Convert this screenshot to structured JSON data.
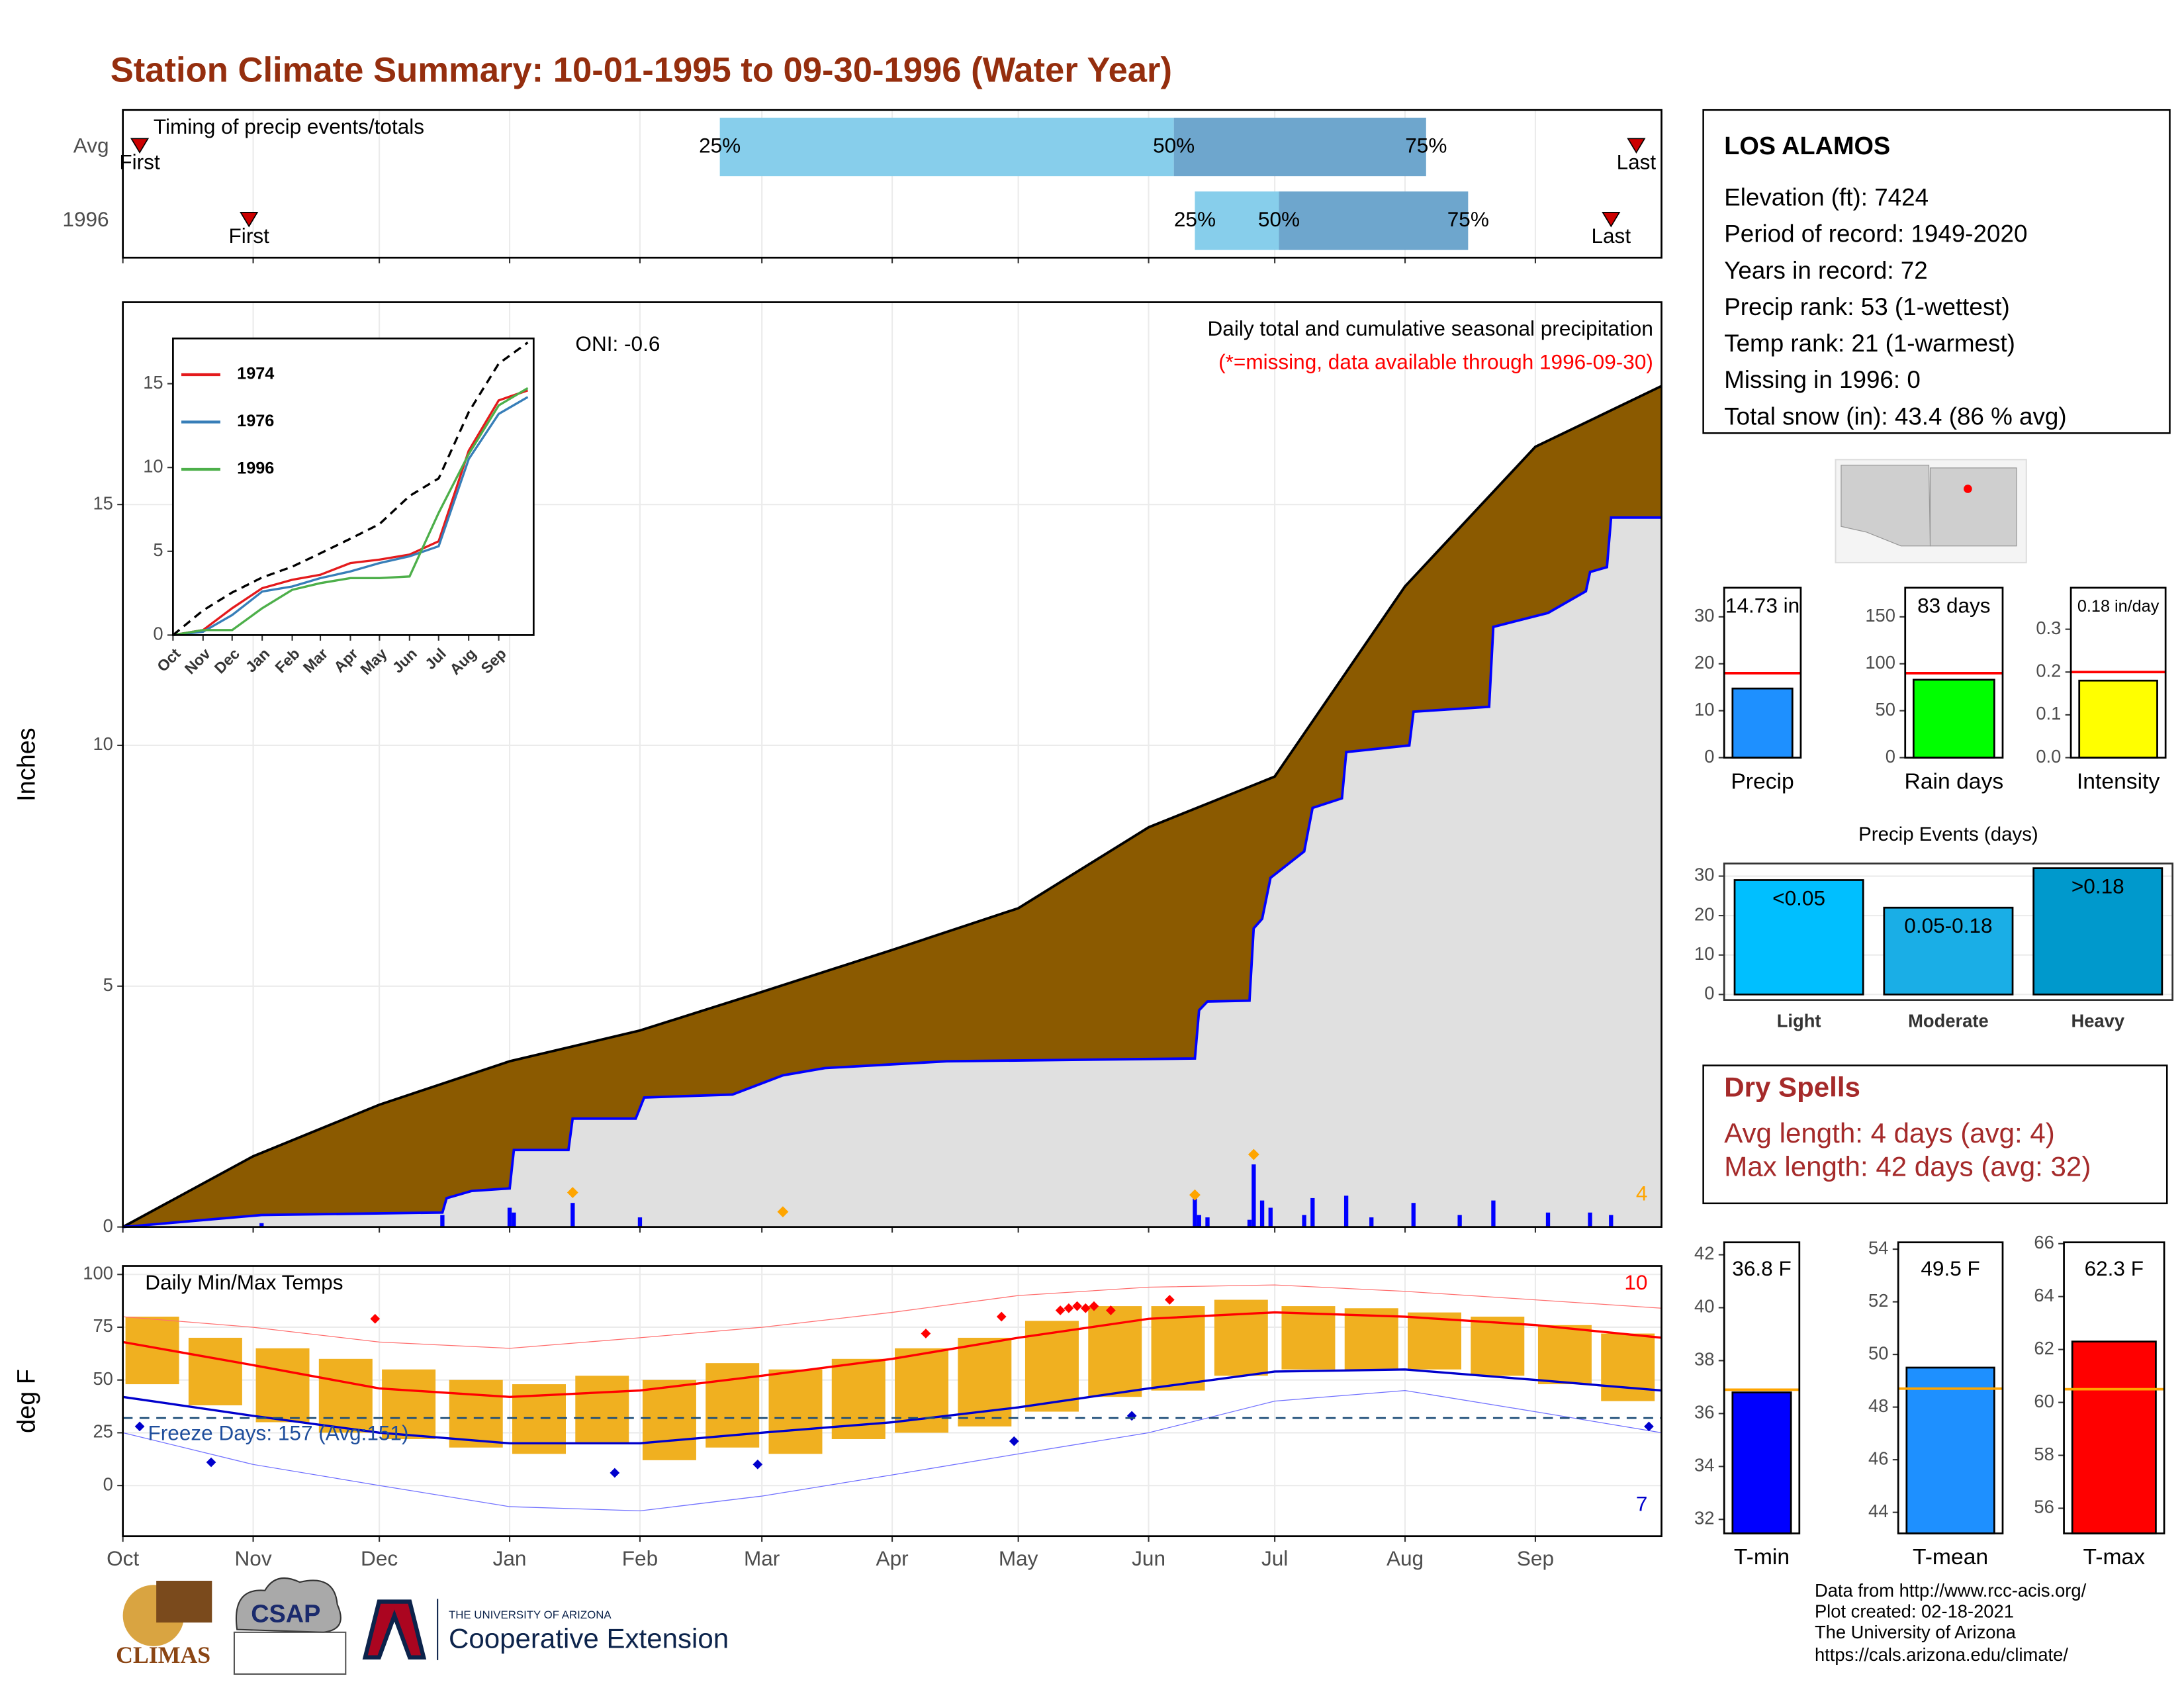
{
  "title": "Station Climate Summary: 10-01-1995 to 09-30-1996 (Water Year)",
  "station": {
    "name": "LOS ALAMOS",
    "lines": [
      "Elevation (ft): 7424",
      "Period of record: 1949-2020",
      "Years in record: 72",
      "Precip rank: 53 (1-wettest)",
      "Temp rank: 21 (1-warmest)",
      "Missing in 1996: 0",
      "Total snow (in): 43.4 (86 % avg)"
    ]
  },
  "dry_spells": {
    "title": "Dry Spells",
    "lines": [
      "Avg length: 4 days (avg: 4)",
      "Max length: 42 days (avg: 32)"
    ]
  },
  "footer": [
    "Data from http://www.rcc-acis.org/",
    "Plot created: 02-18-2021",
    "The University of Arizona",
    "https://cals.arizona.edu/climate/"
  ],
  "logos": {
    "climas": "CLIMAS",
    "csap": "CSAP",
    "university": "THE UNIVERSITY OF ARIZONA",
    "extension": "Cooperative Extension"
  },
  "chart_data": [
    {
      "type": "timeline",
      "title": "Timing of precip events/totals",
      "categories": [
        "Avg",
        "1996"
      ],
      "xlim": [
        0,
        366
      ],
      "xticks": [
        0,
        31,
        61,
        92,
        123,
        152,
        183,
        213,
        244,
        274,
        305,
        336
      ],
      "grid": true,
      "first": [
        4,
        30
      ],
      "last": [
        360,
        354
      ],
      "first_label": "First",
      "last_label": "Last",
      "q25": [
        142,
        255
      ],
      "q50": [
        250,
        275
      ],
      "q75": [
        310,
        320
      ],
      "q_labels": [
        "25%",
        "50%",
        "75%"
      ],
      "colors": [
        "#87ceeb",
        "#6ea6cd"
      ],
      "marker_color": "#cc0000"
    },
    {
      "type": "cumulative",
      "ylabel": "Inches",
      "annotation": "Daily total and cumulative seasonal precipitation",
      "note": "(*=missing, data available through 1996-09-30)",
      "note_color": "#ff0000",
      "oni": "ONI: -0.6",
      "record_count": 4,
      "record_color": "#ffa500",
      "xlim": [
        0,
        366
      ],
      "xticks": [
        0,
        31,
        61,
        92,
        123,
        152,
        183,
        213,
        244,
        274,
        305,
        336
      ],
      "ylim": [
        0,
        19.2
      ],
      "yticks": [
        0,
        5,
        10,
        15
      ],
      "grid": true,
      "series": [
        {
          "color": "#000000",
          "fill": "#8b5a00",
          "x": [
            0,
            31,
            61,
            92,
            123,
            152,
            183,
            213,
            244,
            274,
            305,
            336,
            366
          ],
          "values": [
            0,
            1.47,
            2.54,
            3.44,
            4.08,
            4.88,
            5.75,
            6.62,
            8.3,
            9.35,
            13.3,
            16.2,
            17.46
          ]
        },
        {
          "color": "#0000ff",
          "fill": "#e0e0e0",
          "x": [
            0,
            33,
            76,
            77,
            83,
            92,
            93,
            106,
            107,
            122,
            124,
            145,
            157,
            167,
            196,
            255,
            256,
            258,
            268,
            269,
            271,
            273,
            281,
            283,
            290,
            291,
            306,
            307,
            325,
            326,
            339,
            348,
            349,
            353,
            354,
            366
          ],
          "values": [
            0,
            0.25,
            0.3,
            0.6,
            0.75,
            0.8,
            1.6,
            1.6,
            2.25,
            2.25,
            2.69,
            2.75,
            3.15,
            3.3,
            3.44,
            3.5,
            4.5,
            4.68,
            4.7,
            6.2,
            6.4,
            7.25,
            7.8,
            8.7,
            8.9,
            9.86,
            10.0,
            10.7,
            10.8,
            12.46,
            12.75,
            13.2,
            13.6,
            13.7,
            14.73,
            14.73
          ]
        }
      ],
      "daily": {
        "color": "#0000ff",
        "x": [
          33,
          76,
          92,
          93,
          107,
          123,
          255,
          256,
          258,
          268,
          269,
          271,
          273,
          281,
          283,
          291,
          297,
          307,
          318,
          326,
          339,
          349,
          354
        ],
        "values": [
          0.08,
          0.25,
          0.4,
          0.3,
          0.5,
          0.2,
          0.6,
          0.25,
          0.2,
          0.15,
          1.3,
          0.55,
          0.4,
          0.25,
          0.6,
          0.65,
          0.2,
          0.5,
          0.25,
          0.55,
          0.3,
          0.3,
          0.25
        ]
      },
      "records": {
        "x": [
          107,
          157,
          255,
          269
        ],
        "values": [
          0.6,
          0.2,
          0.55,
          1.39
        ]
      }
    },
    {
      "type": "line",
      "xlim": [
        0,
        372
      ],
      "ylim": [
        0,
        17.7
      ],
      "xticks": [
        {
          "value": 0,
          "label": "Oct"
        },
        {
          "value": 31,
          "label": "Nov"
        },
        {
          "value": 61,
          "label": "Dec"
        },
        {
          "value": 92,
          "label": "Jan"
        },
        {
          "value": 123,
          "label": "Feb"
        },
        {
          "value": 152,
          "label": "Mar"
        },
        {
          "value": 183,
          "label": "Apr"
        },
        {
          "value": 213,
          "label": "May"
        },
        {
          "value": 244,
          "label": "Jun"
        },
        {
          "value": 274,
          "label": "Jul"
        },
        {
          "value": 305,
          "label": "Aug"
        },
        {
          "value": 336,
          "label": "Sep"
        }
      ],
      "yticks": [
        0,
        5,
        10,
        15
      ],
      "legend": "upper left",
      "x": [
        0,
        31,
        61,
        92,
        123,
        152,
        183,
        213,
        244,
        274,
        305,
        336,
        366
      ],
      "series": [
        {
          "name": "1974",
          "color": "#e41a1c",
          "values": [
            0,
            0.3,
            1.6,
            2.8,
            3.3,
            3.6,
            4.3,
            4.5,
            4.8,
            5.6,
            11,
            14,
            14.6
          ]
        },
        {
          "name": "1976",
          "color": "#377eb8",
          "values": [
            0,
            0.2,
            1.2,
            2.6,
            2.9,
            3.4,
            3.8,
            4.3,
            4.7,
            5.3,
            10.5,
            13.2,
            14.2
          ]
        },
        {
          "name": "1996",
          "color": "#4daf4a",
          "values": [
            0,
            0.3,
            0.3,
            1.6,
            2.7,
            3.1,
            3.4,
            3.4,
            3.5,
            7.3,
            10.8,
            13.7,
            14.73
          ]
        },
        {
          "color": "#000000",
          "dashed": true,
          "values": [
            0,
            1.47,
            2.54,
            3.44,
            4.08,
            4.88,
            5.75,
            6.62,
            8.3,
            9.35,
            13.3,
            16.2,
            17.46
          ]
        }
      ]
    },
    {
      "type": "temperature",
      "title": "Daily Min/Max Temps",
      "ylabel": "deg F",
      "xlim": [
        0,
        366
      ],
      "ylim": [
        -24,
        104
      ],
      "grid": true,
      "xticks": [
        {
          "value": 0,
          "label": "Oct"
        },
        {
          "value": 31,
          "label": "Nov"
        },
        {
          "value": 61,
          "label": "Dec"
        },
        {
          "value": 92,
          "label": "Jan"
        },
        {
          "value": 123,
          "label": "Feb"
        },
        {
          "value": 152,
          "label": "Mar"
        },
        {
          "value": 183,
          "label": "Apr"
        },
        {
          "value": 213,
          "label": "May"
        },
        {
          "value": 244,
          "label": "Jun"
        },
        {
          "value": 274,
          "label": "Jul"
        },
        {
          "value": 305,
          "label": "Aug"
        },
        {
          "value": 336,
          "label": "Sep"
        }
      ],
      "yticks": [
        0,
        25,
        50,
        75,
        100
      ],
      "x": [
        0,
        31,
        61,
        92,
        123,
        152,
        183,
        213,
        244,
        274,
        305,
        336,
        366
      ],
      "series": [
        {
          "color": "#ff0000",
          "linewidth": 1.6,
          "values": [
            68,
            57,
            46,
            42,
            45,
            52,
            60,
            70,
            79,
            82,
            80,
            76,
            70
          ]
        },
        {
          "color": "#0000cc",
          "linewidth": 1.6,
          "values": [
            42,
            33,
            25,
            20,
            20,
            25,
            30,
            37,
            46,
            54,
            55,
            50,
            45
          ]
        },
        {
          "color": "#ff7070",
          "linewidth": 0.6,
          "values": [
            80,
            75,
            68,
            65,
            70,
            75,
            82,
            90,
            94,
            95,
            92,
            88,
            84
          ]
        },
        {
          "color": "#7070ff",
          "linewidth": 0.6,
          "values": [
            25,
            10,
            0,
            -10,
            -12,
            -5,
            5,
            15,
            25,
            40,
            45,
            35,
            25
          ]
        }
      ],
      "ranges": {
        "color": "#f0b020",
        "x": [
          7,
          22,
          38,
          53,
          68,
          84,
          99,
          114,
          130,
          145,
          160,
          175,
          190,
          205,
          221,
          236,
          251,
          266,
          282,
          297,
          312,
          327,
          343,
          358
        ],
        "low": [
          48,
          38,
          30,
          25,
          22,
          18,
          15,
          20,
          12,
          18,
          15,
          22,
          25,
          28,
          35,
          42,
          45,
          52,
          55,
          55,
          55,
          52,
          48,
          40
        ],
        "high": [
          80,
          70,
          65,
          60,
          55,
          50,
          48,
          52,
          50,
          58,
          55,
          60,
          65,
          70,
          78,
          85,
          85,
          88,
          85,
          84,
          82,
          80,
          76,
          72
        ]
      },
      "record_highs": {
        "color": "#ff0000",
        "x": [
          60,
          191,
          209,
          223,
          225,
          227,
          229,
          231,
          235,
          249
        ],
        "values": [
          79,
          72,
          80,
          83,
          84,
          85,
          84,
          85,
          83,
          88
        ]
      },
      "record_lows": {
        "color": "#0000cc",
        "x": [
          4,
          21,
          117,
          151,
          212,
          240,
          363
        ],
        "values": [
          28,
          11,
          6,
          10,
          21,
          33,
          28
        ]
      },
      "freeze": 32,
      "freeze_label": "Freeze Days: 157 (Avg:151)",
      "hot_count": 10,
      "cold_count": 7
    },
    {
      "type": "bar",
      "categories": [
        "Precip"
      ],
      "values": [
        14.73
      ],
      "value_labels": [
        "14.73 in"
      ],
      "average": [
        18
      ],
      "color": "#1e90ff",
      "avg_color": "#ff0000",
      "ylim": [
        0,
        36.2
      ],
      "yticks": [
        0,
        10,
        20,
        30
      ]
    },
    {
      "type": "bar",
      "categories": [
        "Rain days"
      ],
      "values": [
        83
      ],
      "value_labels": [
        "83 days"
      ],
      "average": [
        90
      ],
      "color": "#00ff00",
      "avg_color": "#ff0000",
      "ylim": [
        0,
        181
      ],
      "yticks": [
        0,
        50,
        100,
        150
      ]
    },
    {
      "type": "bar",
      "categories": [
        "Intensity"
      ],
      "values": [
        0.18
      ],
      "value_labels": [
        "0.18 in/day"
      ],
      "average": [
        0.2
      ],
      "color": "#ffff00",
      "avg_color": "#ff0000",
      "ylim": [
        0,
        0.397
      ],
      "yticks": [
        {
          "value": 0,
          "label": "0.0"
        },
        0.1,
        0.2,
        0.3
      ]
    },
    {
      "type": "bar",
      "title": "Precip Events (days)",
      "categories": [
        "Light",
        "Moderate",
        "Heavy"
      ],
      "values": [
        29,
        22,
        32
      ],
      "annotations": [
        "<0.05",
        "0.05-0.18",
        ">0.18"
      ],
      "colors": [
        "#00bfff",
        "#1aaee6",
        "#0099cc"
      ],
      "ylim": [
        -1.4,
        33.2
      ],
      "yticks": [
        0,
        10,
        20,
        30
      ],
      "grid": true
    },
    {
      "type": "bar",
      "categories": [
        "T-min"
      ],
      "values": [
        36.8
      ],
      "value_labels": [
        "36.8 F"
      ],
      "average": [
        36.9
      ],
      "color": "#0000ff",
      "avg_color": "#ffa500",
      "ylim": [
        31.47,
        42.47
      ],
      "yticks": [
        32,
        34,
        36,
        38,
        40,
        42
      ]
    },
    {
      "type": "bar",
      "categories": [
        "T-mean"
      ],
      "values": [
        49.5
      ],
      "value_labels": [
        "49.5 F"
      ],
      "average": [
        48.7
      ],
      "color": "#1e90ff",
      "avg_color": "#ffa500",
      "ylim": [
        43.2,
        54.26
      ],
      "yticks": [
        44,
        46,
        48,
        50,
        52,
        54
      ]
    },
    {
      "type": "bar",
      "categories": [
        "T-max"
      ],
      "values": [
        62.3
      ],
      "value_labels": [
        "62.3 F"
      ],
      "average": [
        60.5
      ],
      "color": "#ff0000",
      "avg_color": "#ffa500",
      "ylim": [
        55.05,
        66.05
      ],
      "yticks": [
        56,
        58,
        60,
        62,
        64,
        66
      ]
    }
  ]
}
